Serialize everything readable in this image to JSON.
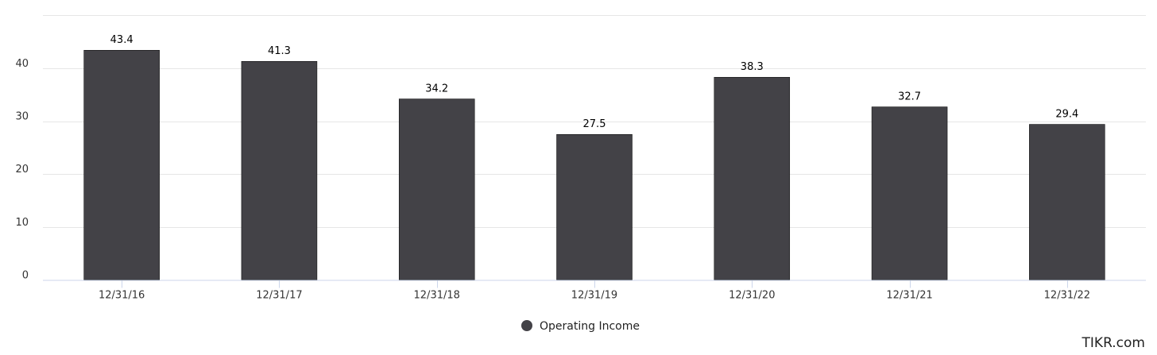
{
  "chart_data": {
    "type": "bar",
    "categories": [
      "12/31/16",
      "12/31/17",
      "12/31/18",
      "12/31/19",
      "12/31/20",
      "12/31/21",
      "12/31/22"
    ],
    "series": [
      {
        "name": "Operating Income",
        "values": [
          43.4,
          41.3,
          34.2,
          27.5,
          38.3,
          32.7,
          29.4
        ],
        "color": "#434247"
      }
    ],
    "yticks": [
      0,
      10,
      20,
      30,
      40
    ],
    "ylim": [
      0,
      50
    ],
    "grid": true,
    "legend_position": "bottom-center",
    "data_labels": [
      "43.4",
      "41.3",
      "34.2",
      "27.5",
      "38.3",
      "32.7",
      "29.4"
    ]
  },
  "legend": {
    "label": "Operating Income"
  },
  "watermark": "TIKR.com"
}
